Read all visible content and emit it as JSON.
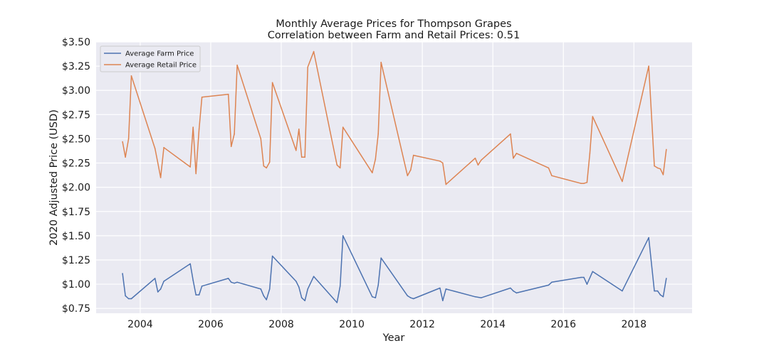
{
  "chart_data": {
    "type": "line",
    "title": "Monthly Average Prices for Thompson Grapes",
    "subtitle": "Correlation between Farm and Retail Prices: 0.51",
    "xlabel": "Year",
    "ylabel": "2020 Adjusted Price (USD)",
    "xlim": [
      2002.75,
      2019.65
    ],
    "ylim": [
      0.7,
      3.5
    ],
    "x_ticks": [
      2004,
      2006,
      2008,
      2010,
      2012,
      2014,
      2016,
      2018
    ],
    "x_tick_labels": [
      "2004",
      "2006",
      "2008",
      "2010",
      "2012",
      "2014",
      "2016",
      "2018"
    ],
    "y_ticks": [
      0.75,
      1.0,
      1.25,
      1.5,
      1.75,
      2.0,
      2.25,
      2.5,
      2.75,
      3.0,
      3.25,
      3.5
    ],
    "y_tick_labels": [
      "$0.75",
      "$1.00",
      "$1.25",
      "$1.50",
      "$1.75",
      "$2.00",
      "$2.25",
      "$2.50",
      "$2.75",
      "$3.00",
      "$3.25",
      "$3.50"
    ],
    "grid": true,
    "legend_position": "upper-left",
    "series": [
      {
        "name": "Average Farm Price",
        "color": "#4c72b0",
        "x": [
          2003.5,
          2003.58,
          2003.67,
          2003.75,
          2004.42,
          2004.5,
          2004.58,
          2004.67,
          2005.42,
          2005.5,
          2005.58,
          2005.67,
          2005.75,
          2006.5,
          2006.58,
          2006.67,
          2006.75,
          2007.42,
          2007.5,
          2007.58,
          2007.67,
          2007.75,
          2008.42,
          2008.5,
          2008.58,
          2008.67,
          2008.75,
          2008.92,
          2009.58,
          2009.67,
          2009.75,
          2010.58,
          2010.67,
          2010.75,
          2010.83,
          2011.58,
          2011.67,
          2011.75,
          2012.5,
          2012.58,
          2012.67,
          2013.5,
          2013.67,
          2014.5,
          2014.58,
          2014.67,
          2015.58,
          2015.67,
          2016.5,
          2016.58,
          2016.67,
          2016.83,
          2017.67,
          2018.42,
          2018.58,
          2018.67,
          2018.75,
          2018.83,
          2018.92
        ],
        "values": [
          1.11,
          0.88,
          0.85,
          0.85,
          1.06,
          0.92,
          0.95,
          1.03,
          1.21,
          1.04,
          0.89,
          0.89,
          0.98,
          1.06,
          1.02,
          1.01,
          1.02,
          0.95,
          0.88,
          0.84,
          0.95,
          1.29,
          1.03,
          0.97,
          0.86,
          0.83,
          0.95,
          1.08,
          0.81,
          0.98,
          1.5,
          0.87,
          0.86,
          0.99,
          1.27,
          0.88,
          0.86,
          0.85,
          0.96,
          0.83,
          0.95,
          0.87,
          0.86,
          0.96,
          0.93,
          0.91,
          0.99,
          1.02,
          1.07,
          1.07,
          1.0,
          1.13,
          0.93,
          1.48,
          0.93,
          0.93,
          0.89,
          0.87,
          1.06
        ]
      },
      {
        "name": "Average Retail Price",
        "color": "#dd8452",
        "x": [
          2003.5,
          2003.58,
          2003.67,
          2003.75,
          2004.42,
          2004.5,
          2004.58,
          2004.67,
          2005.42,
          2005.5,
          2005.58,
          2005.67,
          2005.75,
          2006.5,
          2006.58,
          2006.67,
          2006.75,
          2007.42,
          2007.5,
          2007.58,
          2007.67,
          2007.75,
          2008.42,
          2008.5,
          2008.58,
          2008.67,
          2008.75,
          2008.92,
          2009.58,
          2009.67,
          2009.75,
          2010.58,
          2010.67,
          2010.75,
          2010.83,
          2011.58,
          2011.67,
          2011.75,
          2012.5,
          2012.58,
          2012.67,
          2013.5,
          2013.58,
          2013.67,
          2014.5,
          2014.58,
          2014.67,
          2015.58,
          2015.67,
          2016.5,
          2016.58,
          2016.67,
          2016.75,
          2016.83,
          2017.67,
          2018.42,
          2018.58,
          2018.67,
          2018.75,
          2018.83,
          2018.92
        ],
        "values": [
          2.47,
          2.31,
          2.5,
          3.15,
          2.4,
          2.25,
          2.1,
          2.41,
          2.21,
          2.62,
          2.14,
          2.6,
          2.93,
          2.96,
          2.42,
          2.55,
          3.26,
          2.5,
          2.22,
          2.2,
          2.26,
          3.08,
          2.38,
          2.6,
          2.31,
          2.31,
          3.24,
          3.4,
          2.23,
          2.2,
          2.62,
          2.15,
          2.29,
          2.55,
          3.29,
          2.12,
          2.18,
          2.33,
          2.27,
          2.25,
          2.03,
          2.3,
          2.23,
          2.28,
          2.55,
          2.3,
          2.35,
          2.2,
          2.12,
          2.04,
          2.04,
          2.05,
          2.35,
          2.73,
          2.06,
          3.25,
          2.22,
          2.2,
          2.19,
          2.13,
          2.39
        ]
      }
    ]
  }
}
